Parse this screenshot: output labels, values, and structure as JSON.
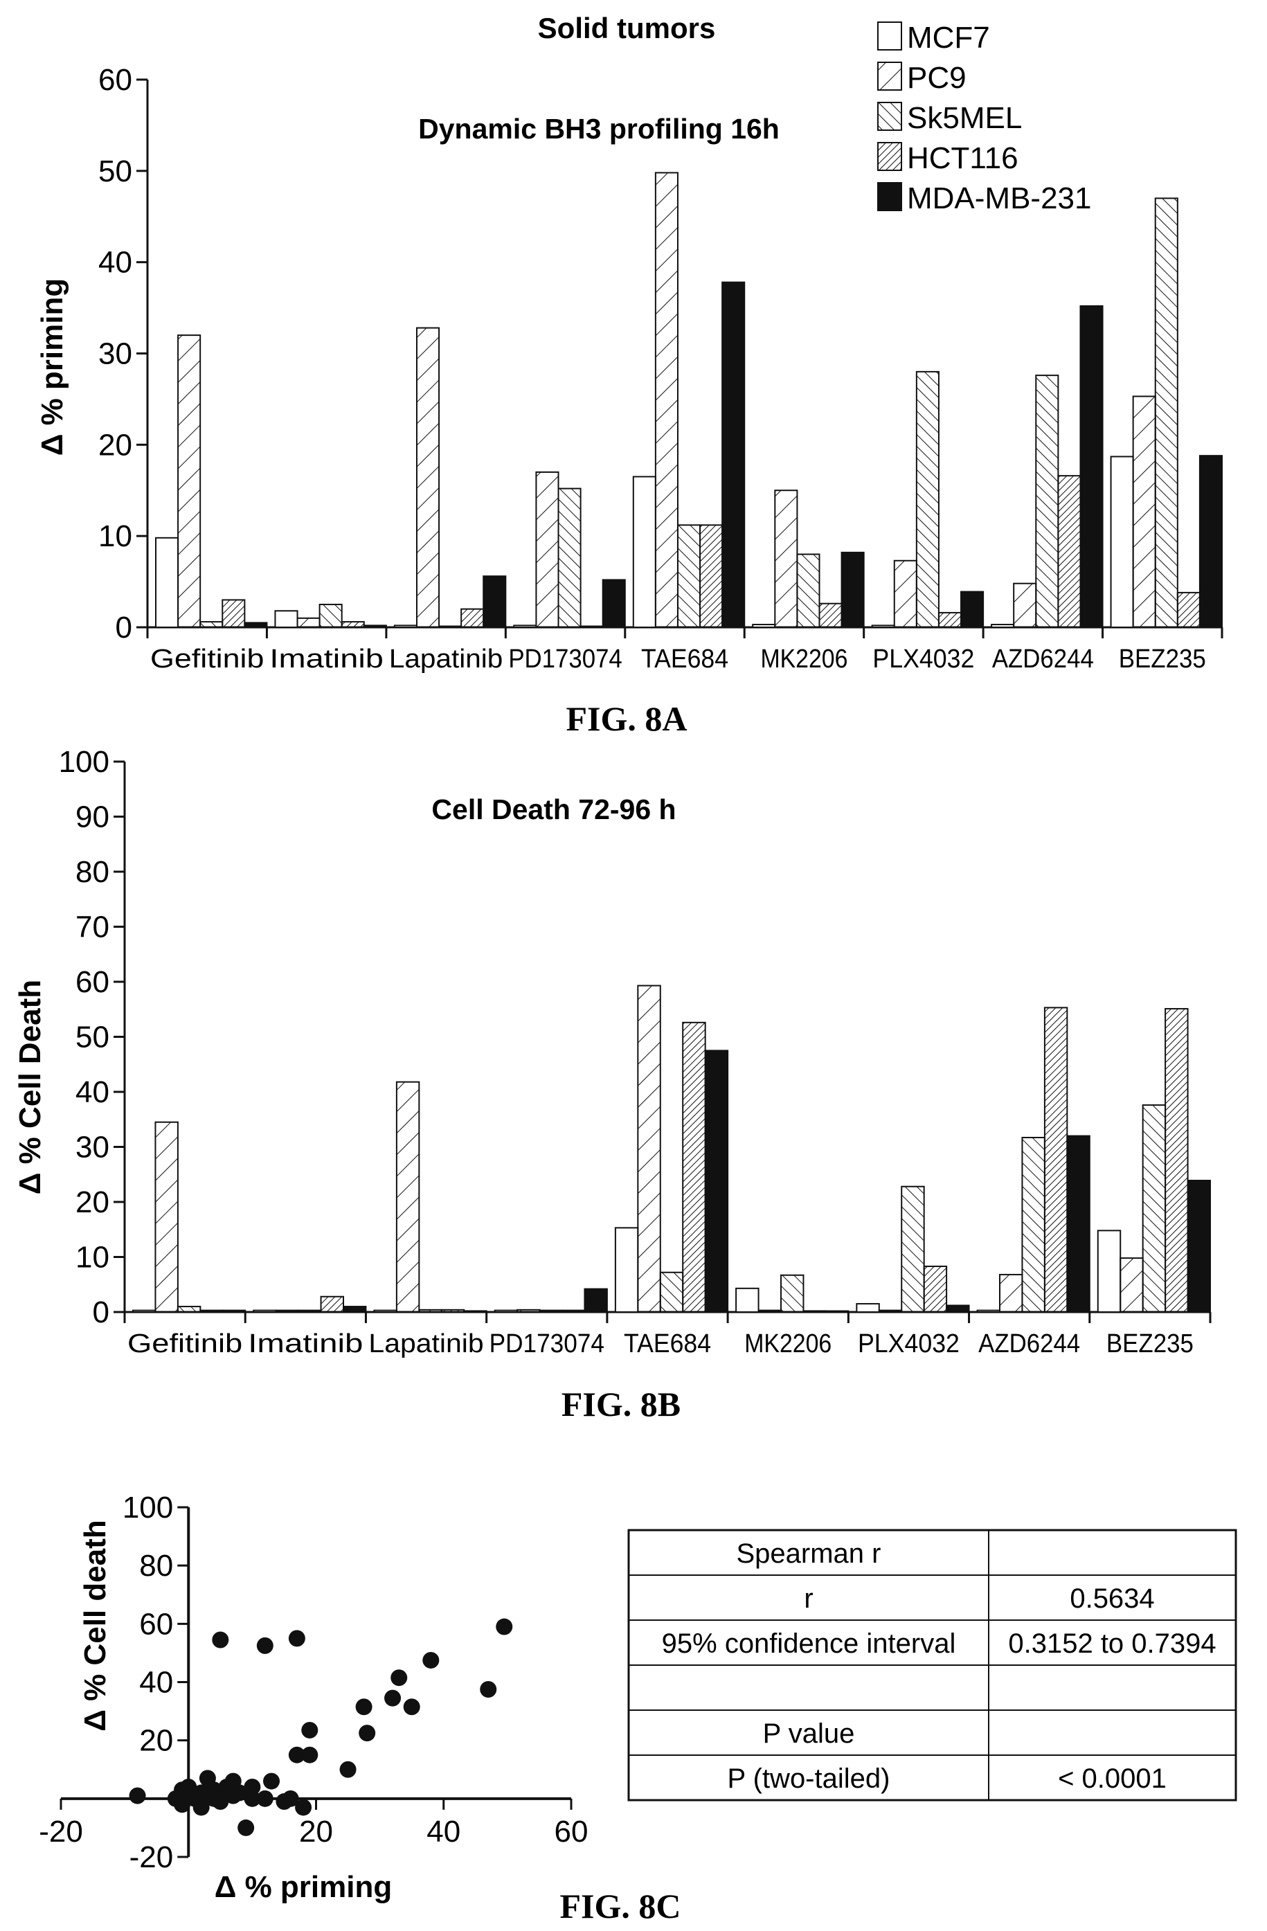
{
  "chart_data": [
    {
      "type": "bar",
      "heading": "Solid tumors",
      "title": "Dynamic BH3 profiling 16h",
      "ylabel": "Δ % priming",
      "xlabel": "",
      "ylim": [
        0,
        60
      ],
      "yticks": [
        0,
        10,
        20,
        30,
        40,
        50,
        60
      ],
      "legend_placement": "top-right",
      "categories": [
        "Gefitinib",
        "Imatinib",
        "Lapatinib",
        "PD173074",
        "TAE684",
        "MK2206",
        "PLX4032",
        "AZD6244",
        "BEZ235"
      ],
      "series": [
        {
          "name": "MCF7",
          "pattern": "open",
          "values": [
            9.8,
            1.8,
            0.2,
            0.2,
            16.5,
            0.3,
            0.2,
            0.3,
            18.7
          ]
        },
        {
          "name": "PC9",
          "pattern": "diag-fwd",
          "values": [
            32,
            1.0,
            32.8,
            17,
            49.8,
            15,
            7.3,
            4.8,
            25.3
          ]
        },
        {
          "name": "Sk5MEL",
          "pattern": "diag-back",
          "values": [
            0.6,
            2.5,
            0.1,
            15.2,
            11.2,
            8.0,
            28,
            27.6,
            47
          ]
        },
        {
          "name": "HCT116",
          "pattern": "diag-dense",
          "values": [
            3.0,
            0.6,
            2.0,
            0.1,
            11.2,
            2.6,
            1.6,
            16.6,
            3.8
          ]
        },
        {
          "name": "MDA-MB-231",
          "pattern": "solid",
          "values": [
            0.5,
            0.2,
            5.6,
            5.2,
            37.8,
            8.2,
            3.9,
            35.2,
            18.8
          ]
        }
      ],
      "caption": "FIG. 8A"
    },
    {
      "type": "bar",
      "title": "Cell Death 72-96 h",
      "ylabel": "Δ % Cell Death",
      "xlabel": "",
      "ylim": [
        0,
        100
      ],
      "yticks": [
        0,
        10,
        20,
        30,
        40,
        50,
        60,
        70,
        80,
        90,
        100
      ],
      "categories": [
        "Gefitinib",
        "Imatinib",
        "Lapatinib",
        "PD173074",
        "TAE684",
        "MK2206",
        "PLX4032",
        "AZD6244",
        "BEZ235"
      ],
      "series": [
        {
          "name": "MCF7",
          "pattern": "open",
          "values": [
            0.3,
            0.3,
            0.3,
            0.3,
            15.3,
            4.3,
            1.5,
            0.3,
            14.8
          ]
        },
        {
          "name": "PC9",
          "pattern": "diag-fwd",
          "values": [
            34.5,
            0.3,
            41.8,
            0.4,
            59.3,
            0.3,
            0.3,
            6.8,
            9.8
          ]
        },
        {
          "name": "Sk5MEL",
          "pattern": "diag-back",
          "values": [
            1.0,
            0.3,
            0.4,
            0.3,
            7.2,
            6.7,
            22.8,
            31.7,
            37.6
          ]
        },
        {
          "name": "HCT116",
          "pattern": "diag-dense",
          "values": [
            0.3,
            2.8,
            0.4,
            0.3,
            52.6,
            0.2,
            8.3,
            55.3,
            55.1
          ]
        },
        {
          "name": "MDA-MB-231",
          "pattern": "solid",
          "values": [
            0.3,
            1.0,
            0.2,
            4.2,
            47.5,
            0.1,
            1.2,
            32.0,
            23.9
          ]
        }
      ],
      "caption": "FIG. 8B"
    },
    {
      "type": "scatter",
      "xlabel": "Δ % priming",
      "ylabel": "Δ % Cell death",
      "xlim": [
        -20,
        60
      ],
      "ylim": [
        -20,
        100
      ],
      "xticks": [
        -20,
        20,
        40,
        60
      ],
      "yticks": [
        -20,
        20,
        40,
        60,
        80,
        100
      ],
      "points": [
        [
          -8,
          1
        ],
        [
          -2,
          0
        ],
        [
          -1,
          3
        ],
        [
          -1,
          -2
        ],
        [
          0,
          4
        ],
        [
          0,
          1
        ],
        [
          1,
          0
        ],
        [
          2,
          2
        ],
        [
          2,
          -3
        ],
        [
          3,
          7
        ],
        [
          3,
          1
        ],
        [
          4,
          3
        ],
        [
          4,
          0
        ],
        [
          5,
          54.5
        ],
        [
          5,
          -1
        ],
        [
          6,
          4
        ],
        [
          7,
          6
        ],
        [
          7,
          1
        ],
        [
          8,
          2
        ],
        [
          9,
          -10
        ],
        [
          10,
          4
        ],
        [
          10,
          0
        ],
        [
          12,
          0
        ],
        [
          13,
          6
        ],
        [
          12,
          52.5
        ],
        [
          15,
          -1
        ],
        [
          16,
          0
        ],
        [
          17,
          15
        ],
        [
          17,
          55
        ],
        [
          18,
          -3
        ],
        [
          19,
          23.5
        ],
        [
          19,
          15
        ],
        [
          25,
          10
        ],
        [
          27.5,
          31.5
        ],
        [
          28,
          22.5
        ],
        [
          32,
          34.5
        ],
        [
          33,
          41.5
        ],
        [
          35,
          31.5
        ],
        [
          38,
          47.5
        ],
        [
          47,
          37.5
        ],
        [
          49.5,
          59
        ]
      ],
      "caption": "FIG. 8C"
    }
  ],
  "stats_table": {
    "rows": [
      [
        "Spearman r",
        ""
      ],
      [
        "r",
        "0.5634"
      ],
      [
        "95% confidence interval",
        "0.3152 to 0.7394"
      ],
      [
        "",
        ""
      ],
      [
        "P value",
        ""
      ],
      [
        "P (two-tailed)",
        "< 0.0001"
      ]
    ]
  }
}
